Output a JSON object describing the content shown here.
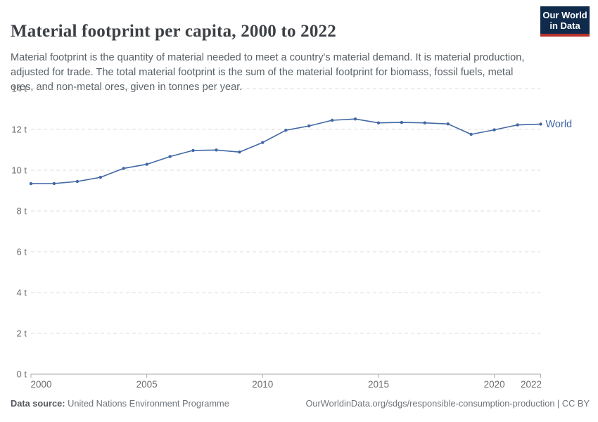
{
  "header": {
    "title": "Material footprint per capita, 2000 to 2022",
    "subtitle": "Material footprint is the quantity of material needed to meet a country's material demand. It is material production, adjusted for trade. The total material footprint is the sum of the material footprint for biomass, fossil fuels, metal ores, and non-metal ores, given in tonnes per year.",
    "logo": {
      "line1": "Our World",
      "line2": "in Data"
    }
  },
  "chart_data": {
    "type": "line",
    "title": "Material footprint per capita, 2000 to 2022",
    "xlabel": "",
    "ylabel": "",
    "unit": "tonnes per year",
    "x": [
      2000,
      2001,
      2002,
      2003,
      2004,
      2005,
      2006,
      2007,
      2008,
      2009,
      2010,
      2011,
      2012,
      2013,
      2014,
      2015,
      2016,
      2017,
      2018,
      2019,
      2020,
      2021,
      2022
    ],
    "series": [
      {
        "name": "World",
        "color": "#4268A5",
        "values": [
          9.34,
          9.35,
          9.45,
          9.65,
          10.09,
          10.29,
          10.67,
          10.97,
          10.99,
          10.89,
          11.36,
          11.96,
          12.17,
          12.45,
          12.51,
          12.32,
          12.34,
          12.32,
          12.27,
          11.76,
          11.98,
          12.22,
          12.26
        ]
      }
    ],
    "ylim": [
      0,
      14
    ],
    "yticks": [
      0,
      2,
      4,
      6,
      8,
      10,
      12,
      14
    ],
    "ytick_suffix": " t",
    "xticks": [
      2000,
      2005,
      2010,
      2015,
      2020,
      2022
    ],
    "grid": "horizontal-dashed",
    "legend_position": "end-of-line",
    "end_label": "World"
  },
  "footer": {
    "source_label": "Data source:",
    "source_value": " United Nations Environment Programme",
    "credit": "OurWorldinData.org/sdgs/responsible-consumption-production | CC BY"
  },
  "colors": {
    "line": "#4268A5",
    "series_label": "#3d63a8",
    "gridline": "#dcdcdc",
    "axis": "#a8a8a8",
    "tick_label": "#6e6e6e",
    "logo_bg": "#102A4C",
    "logo_accent": "#B5332C"
  }
}
